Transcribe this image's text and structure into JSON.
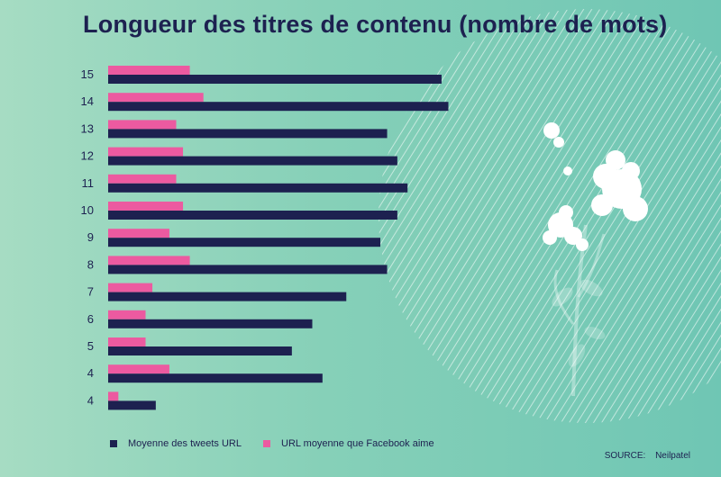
{
  "title": "Longueur des titres de contenu (nombre de mots)",
  "colors": {
    "tweets": "#1d2150",
    "facebook": "#ec5aa0",
    "text": "#1d2150"
  },
  "legend": {
    "tweets": "Moyenne des tweets URL",
    "facebook": "URL moyenne que Facebook aime"
  },
  "source": {
    "label": "SOURCE:",
    "value": "Neilpatel"
  },
  "chart_data": {
    "type": "bar",
    "orientation": "horizontal",
    "categories": [
      "15",
      "14",
      "13",
      "12",
      "11",
      "10",
      "9",
      "8",
      "7",
      "6",
      "5",
      "4",
      "4"
    ],
    "series": [
      {
        "name": "URL moyenne que Facebook aime",
        "color": "#ec5aa0",
        "values": [
          12,
          14,
          10,
          11,
          10,
          11,
          9,
          12,
          6.5,
          5.5,
          5.5,
          9,
          1.5
        ]
      },
      {
        "name": "Moyenne des tweets URL",
        "color": "#1d2150",
        "values": [
          49,
          50,
          41,
          42.5,
          44,
          42.5,
          40,
          41,
          35,
          30,
          27,
          31.5,
          7
        ]
      }
    ],
    "xlim": [
      0,
      60
    ],
    "xlabel": "",
    "ylabel": "",
    "grid": false,
    "legend_position": "bottom-left"
  }
}
